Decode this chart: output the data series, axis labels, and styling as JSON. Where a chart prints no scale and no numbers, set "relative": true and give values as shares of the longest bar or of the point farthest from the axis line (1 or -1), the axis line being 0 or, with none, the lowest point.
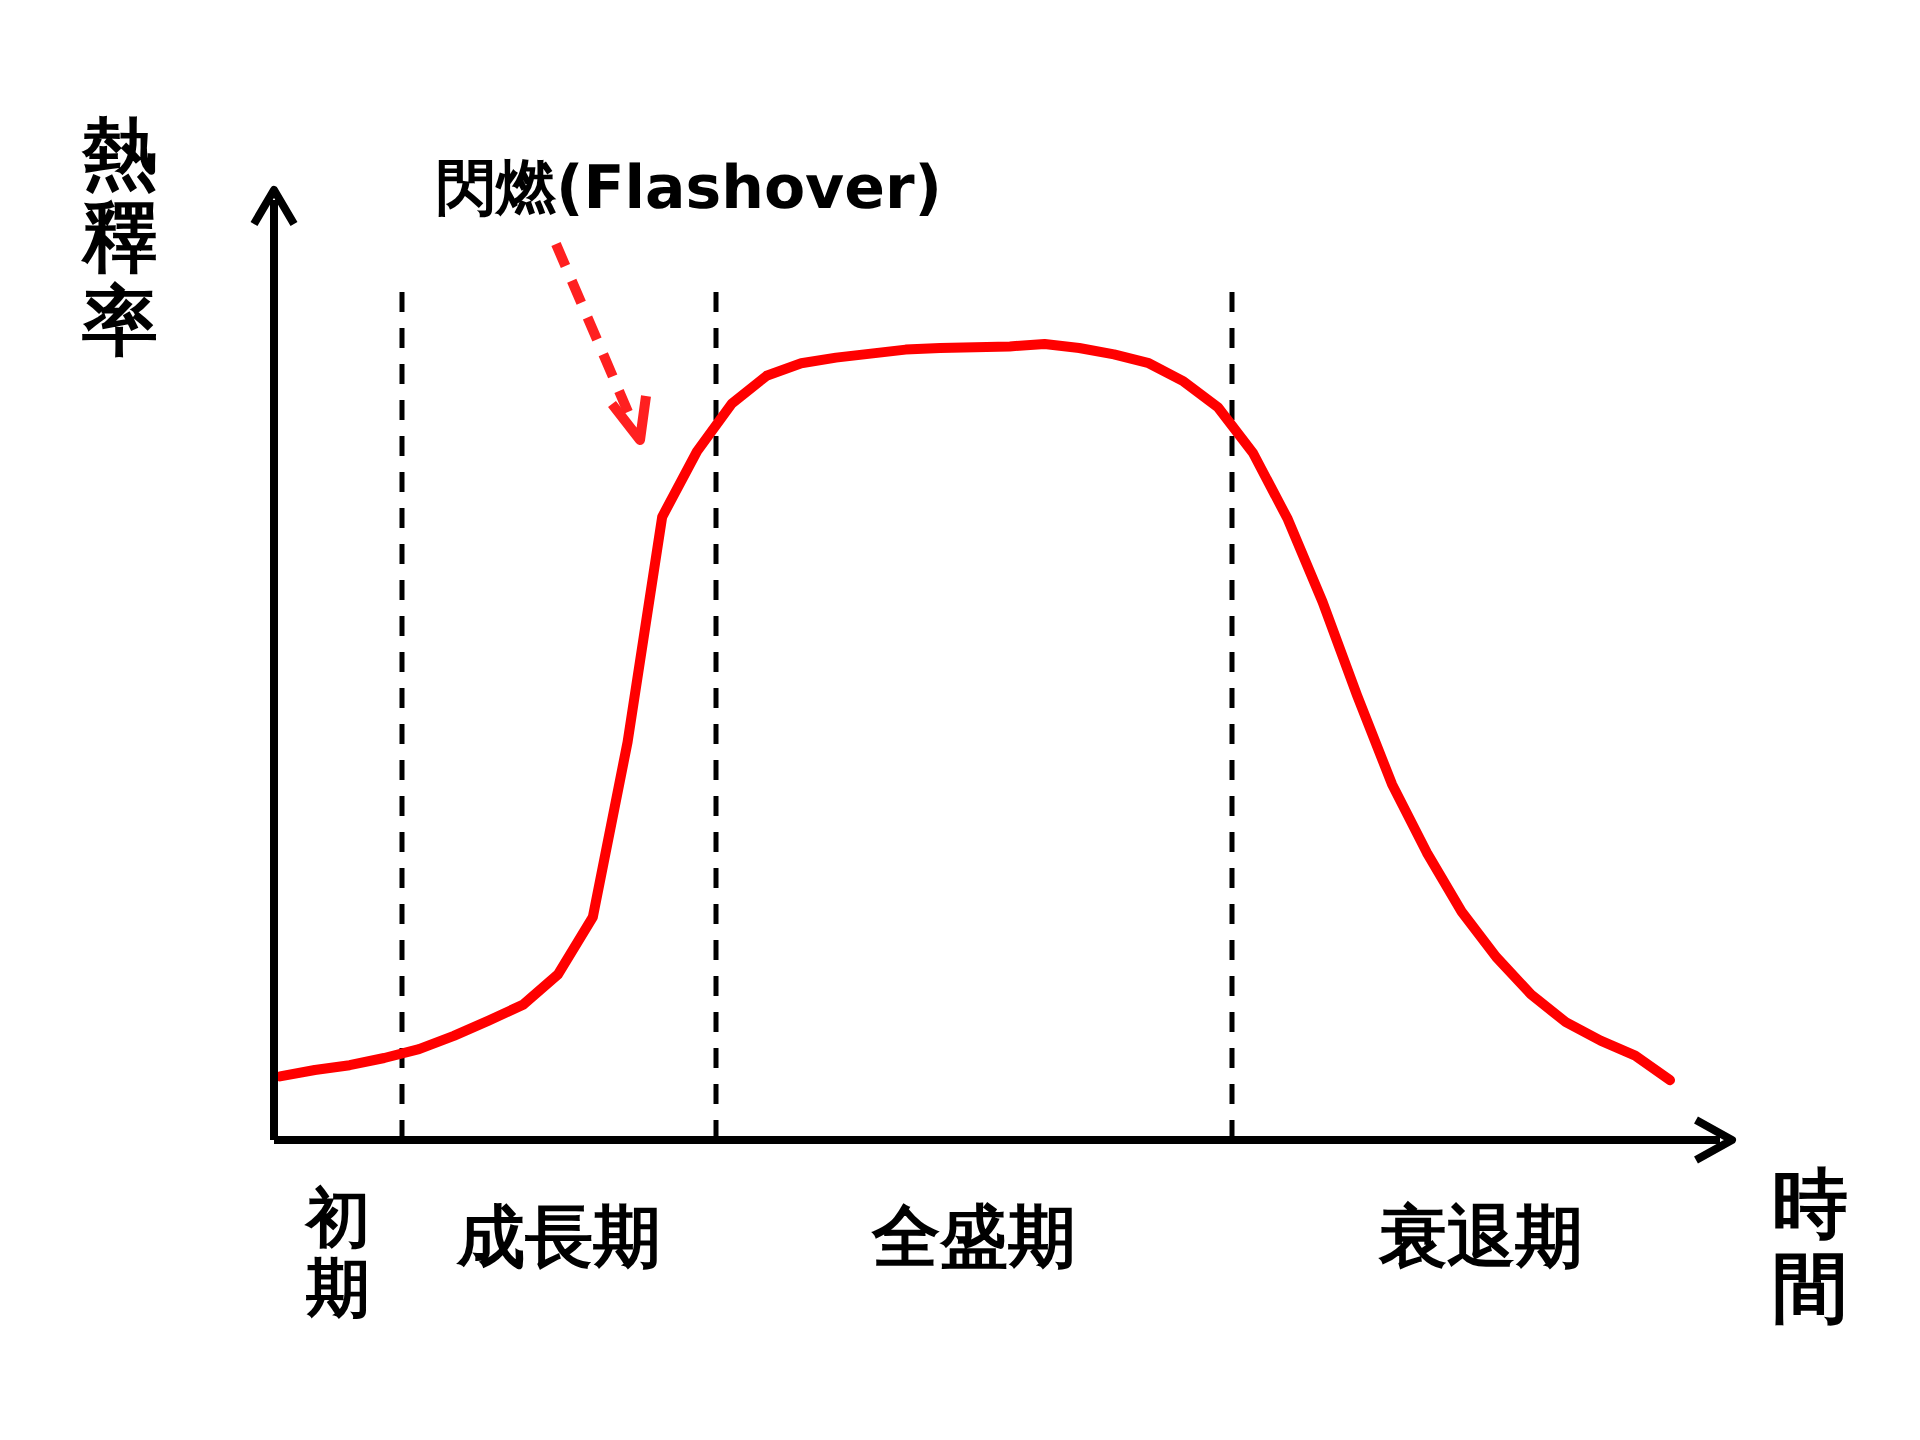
{
  "chart_data": {
    "type": "line",
    "relative": true,
    "xlabel": "時間",
    "ylabel": "熱釋率",
    "categories": [
      null,
      null,
      null,
      null,
      null,
      null,
      null,
      null,
      null,
      null,
      null,
      null,
      null,
      null,
      null,
      null,
      null,
      null,
      null,
      null,
      null,
      null,
      null,
      null,
      null,
      null,
      null,
      null,
      null,
      null,
      null,
      null,
      null,
      null,
      null,
      null,
      null,
      null,
      null,
      null,
      null
    ],
    "series": [
      {
        "color": "#ff0000",
        "values": [
          0.08,
          0.088,
          0.094,
          0.103,
          0.114,
          0.131,
          0.15,
          0.17,
          0.208,
          0.28,
          0.5,
          0.783,
          0.865,
          0.925,
          0.96,
          0.976,
          0.983,
          0.988,
          0.993,
          0.995,
          0.996,
          0.997,
          1,
          0.995,
          0.987,
          0.976,
          0.953,
          0.92,
          0.863,
          0.78,
          0.676,
          0.558,
          0.447,
          0.361,
          0.287,
          0.23,
          0.183,
          0.148,
          0.125,
          0.106,
          0.075
        ]
      }
    ],
    "annotations": [
      "閃燃(Flashover)",
      "初期",
      "成長期",
      "全盛期",
      "衰退期"
    ]
  }
}
